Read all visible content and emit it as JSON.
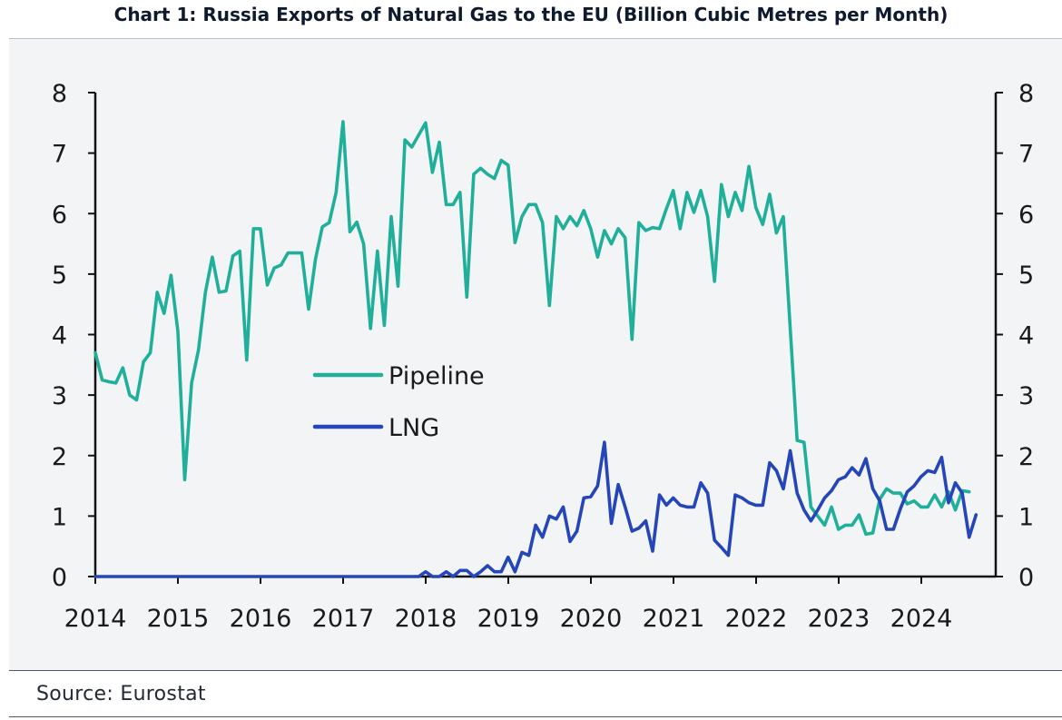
{
  "title": "Chart 1: Russia Exports of Natural Gas to the EU (Billion Cubic Metres per Month)",
  "source": "Source: Eurostat",
  "chart_data": {
    "type": "line",
    "title": "Chart 1: Russia Exports of Natural Gas to the EU (Billion Cubic Metres per Month)",
    "xlabel": "",
    "ylabel": "",
    "xlim": [
      2014.0,
      2024.9
    ],
    "ylim": [
      0,
      8
    ],
    "x_ticks": [
      2014,
      2015,
      2016,
      2017,
      2018,
      2019,
      2020,
      2021,
      2022,
      2023,
      2024
    ],
    "x_tick_labels": [
      "2014",
      "2015",
      "2016",
      "2017",
      "2018",
      "2019",
      "2020",
      "2021",
      "2022",
      "2023",
      "2024"
    ],
    "y_ticks": [
      0,
      1,
      2,
      3,
      4,
      5,
      6,
      7,
      8
    ],
    "y_tick_labels": [
      "0",
      "1",
      "2",
      "3",
      "4",
      "5",
      "6",
      "7",
      "8"
    ],
    "legend": {
      "position": "center-left",
      "entries": [
        "Pipeline",
        "LNG"
      ]
    },
    "series": [
      {
        "name": "Pipeline",
        "color": "#1faf9a",
        "start": 2014.0,
        "step": 0.0833,
        "values": [
          3.7,
          3.25,
          3.22,
          3.2,
          3.45,
          3.0,
          2.92,
          3.55,
          3.7,
          4.7,
          4.35,
          4.98,
          4.05,
          1.6,
          3.2,
          3.75,
          4.7,
          5.28,
          4.7,
          4.72,
          5.3,
          5.38,
          3.58,
          5.75,
          5.75,
          4.82,
          5.1,
          5.15,
          5.35,
          5.35,
          5.35,
          4.42,
          5.25,
          5.78,
          5.85,
          6.35,
          7.52,
          5.7,
          5.86,
          5.5,
          4.1,
          5.38,
          4.15,
          5.95,
          4.8,
          7.22,
          7.1,
          7.3,
          7.5,
          6.68,
          7.18,
          6.15,
          6.15,
          6.35,
          4.62,
          6.65,
          6.75,
          6.65,
          6.58,
          6.88,
          6.8,
          5.52,
          5.95,
          6.15,
          6.15,
          5.85,
          4.48,
          5.95,
          5.75,
          5.95,
          5.8,
          6.05,
          5.75,
          5.28,
          5.72,
          5.5,
          5.75,
          5.6,
          3.92,
          5.85,
          5.72,
          5.77,
          5.75,
          6.08,
          6.38,
          5.75,
          6.35,
          6.02,
          6.38,
          5.95,
          4.88,
          6.48,
          5.95,
          6.35,
          6.05,
          6.78,
          6.1,
          5.82,
          6.32,
          5.68,
          5.95,
          4.1,
          2.25,
          2.22,
          1.15,
          1.0,
          0.85,
          1.15,
          0.78,
          0.85,
          0.85,
          1.02,
          0.7,
          0.72,
          1.28,
          1.45,
          1.38,
          1.38,
          1.2,
          1.25,
          1.15,
          1.15,
          1.35,
          1.15,
          1.4,
          1.1,
          1.42,
          1.4
        ]
      },
      {
        "name": "LNG",
        "color": "#2546b8",
        "start": 2014.0,
        "step": 0.0833,
        "values": [
          0,
          0,
          0,
          0,
          0,
          0,
          0,
          0,
          0,
          0,
          0,
          0,
          0,
          0,
          0,
          0,
          0,
          0,
          0,
          0,
          0,
          0,
          0,
          0,
          0,
          0,
          0,
          0,
          0,
          0,
          0,
          0,
          0,
          0,
          0,
          0,
          0,
          0,
          0,
          0,
          0,
          0,
          0,
          0,
          0,
          0,
          0,
          0,
          0.08,
          0,
          0,
          0.08,
          0,
          0.1,
          0.1,
          0,
          0.08,
          0.18,
          0.08,
          0.08,
          0.32,
          0.08,
          0.4,
          0.35,
          0.85,
          0.65,
          1.0,
          0.95,
          1.15,
          0.58,
          0.75,
          1.3,
          1.32,
          1.5,
          2.22,
          0.88,
          1.52,
          1.15,
          0.75,
          0.8,
          0.92,
          0.42,
          1.35,
          1.18,
          1.3,
          1.18,
          1.15,
          1.15,
          1.55,
          1.38,
          0.6,
          0.48,
          0.35,
          1.35,
          1.3,
          1.22,
          1.18,
          1.18,
          1.88,
          1.75,
          1.45,
          2.08,
          1.38,
          1.1,
          0.92,
          1.1,
          1.3,
          1.42,
          1.6,
          1.65,
          1.8,
          1.68,
          1.95,
          1.45,
          1.25,
          0.78,
          0.78,
          1.12,
          1.4,
          1.5,
          1.65,
          1.75,
          1.72,
          1.97,
          1.22,
          1.55,
          1.38,
          0.65,
          1.02
        ]
      }
    ]
  }
}
